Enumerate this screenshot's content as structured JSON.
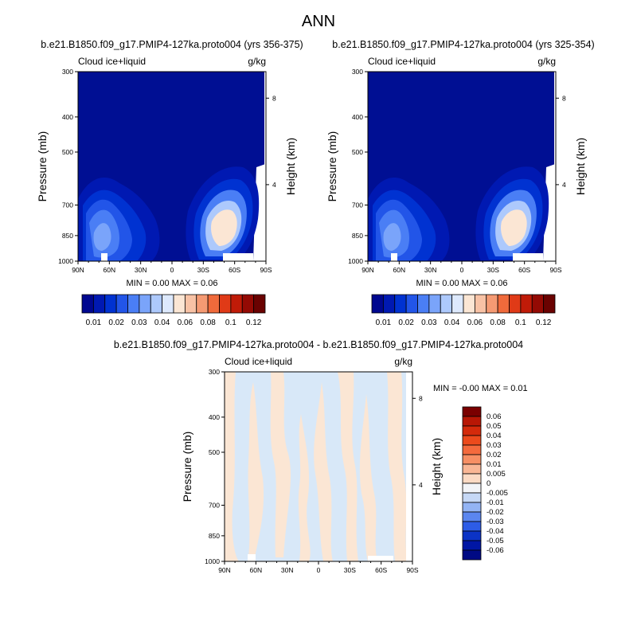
{
  "figure_title": "ANN",
  "colors": {
    "bg_dark": "#000f93",
    "ocean_bg": "#000f93",
    "panel_bg": "#ffffff",
    "frame": "#000000",
    "diff_light_blue": "#d8e8f8",
    "diff_peach": "#fbe6d4"
  },
  "chart_data": [
    {
      "type": "heatmap",
      "title": "b.e21.B1850.f09_g17.PMIP4-127ka.proto004 (yrs 356-375)",
      "left_label": "Cloud ice+liquid",
      "right_label": "g/kg",
      "ylabel": "Pressure (mb)",
      "y2label": "Height (km)",
      "x_ticks": [
        "90N",
        "60N",
        "30N",
        "0",
        "30S",
        "60S",
        "90S"
      ],
      "y_ticks": [
        "300",
        "400",
        "500",
        "700",
        "850",
        "1000"
      ],
      "y2_ticks": [
        "8",
        "4"
      ],
      "ylim": [
        1000,
        300
      ],
      "y_scale": "log-pressure",
      "min_text": "MIN =   0.00  MAX =   0.06",
      "min": 0.0,
      "max": 0.06,
      "colorbar": {
        "orientation": "horizontal",
        "labels": [
          "0.01",
          "0.02",
          "0.03",
          "0.04",
          "0.06",
          "0.08",
          "0.1",
          "0.12"
        ],
        "colors": [
          "#00078f",
          "#0019b2",
          "#0032d1",
          "#2255e8",
          "#4a7ef5",
          "#7aa4fa",
          "#adc9fc",
          "#dde9fd",
          "#fbe6d4",
          "#f8c2a5",
          "#f59a73",
          "#f06a3b",
          "#e03a17",
          "#c01b08",
          "#940a04",
          "#6a0201"
        ]
      }
    },
    {
      "type": "heatmap",
      "title": "b.e21.B1850.f09_g17.PMIP4-127ka.proto004 (yrs 325-354)",
      "left_label": "Cloud ice+liquid",
      "right_label": "g/kg",
      "ylabel": "Pressure (mb)",
      "y2label": "Height (km)",
      "x_ticks": [
        "90N",
        "60N",
        "30N",
        "0",
        "30S",
        "60S",
        "90S"
      ],
      "y_ticks": [
        "300",
        "400",
        "500",
        "700",
        "850",
        "1000"
      ],
      "y2_ticks": [
        "8",
        "4"
      ],
      "ylim": [
        1000,
        300
      ],
      "y_scale": "log-pressure",
      "min_text": "MIN =   0.00  MAX =   0.06",
      "min": 0.0,
      "max": 0.06,
      "colorbar": {
        "orientation": "horizontal",
        "labels": [
          "0.01",
          "0.02",
          "0.03",
          "0.04",
          "0.06",
          "0.08",
          "0.1",
          "0.12"
        ],
        "colors": [
          "#00078f",
          "#0019b2",
          "#0032d1",
          "#2255e8",
          "#4a7ef5",
          "#7aa4fa",
          "#adc9fc",
          "#dde9fd",
          "#fbe6d4",
          "#f8c2a5",
          "#f59a73",
          "#f06a3b",
          "#e03a17",
          "#c01b08",
          "#940a04",
          "#6a0201"
        ]
      }
    },
    {
      "type": "heatmap",
      "title": "b.e21.B1850.f09_g17.PMIP4-127ka.proto004 - b.e21.B1850.f09_g17.PMIP4-127ka.proto004",
      "left_label": "Cloud ice+liquid",
      "right_label": "g/kg",
      "ylabel": "Pressure (mb)",
      "y2label": "Height (km)",
      "x_ticks": [
        "90N",
        "60N",
        "30N",
        "0",
        "30S",
        "60S",
        "90S"
      ],
      "y_ticks": [
        "300",
        "400",
        "500",
        "700",
        "850",
        "1000"
      ],
      "y2_ticks": [
        "8",
        "4"
      ],
      "ylim": [
        1000,
        300
      ],
      "y_scale": "log-pressure",
      "min_text": "MIN = -0.00  MAX =   0.01",
      "min": -0.0,
      "max": 0.01,
      "colorbar": {
        "orientation": "vertical",
        "labels": [
          "0.06",
          "0.05",
          "0.04",
          "0.03",
          "0.02",
          "0.01",
          "0.005",
          "0",
          "-0.005",
          "-0.01",
          "-0.02",
          "-0.03",
          "-0.04",
          "-0.05",
          "-0.06"
        ],
        "colors": [
          "#7a0000",
          "#b81705",
          "#d42a0b",
          "#ec4a1c",
          "#f46a3d",
          "#f78f64",
          "#f9b695",
          "#fbdac4",
          "#f2f4f8",
          "#c6d8f6",
          "#93b4f4",
          "#5b86ef",
          "#2d5ce6",
          "#0b33c6",
          "#0016a4",
          "#000a84"
        ]
      }
    }
  ]
}
